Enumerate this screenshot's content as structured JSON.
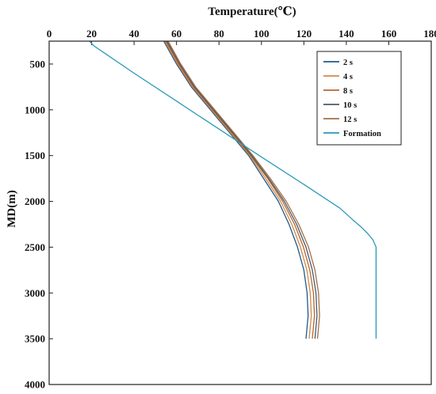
{
  "chart_data": {
    "type": "line",
    "xlabel": "Temperature(℃)",
    "ylabel": "MD(m)",
    "xlim": [
      0,
      180
    ],
    "ylim": [
      4000,
      250
    ],
    "y_inverted": true,
    "x_axis_position": "top",
    "x_ticks": [
      0,
      20,
      40,
      60,
      80,
      100,
      120,
      140,
      160,
      180
    ],
    "y_ticks": [
      500,
      1000,
      1500,
      2000,
      2500,
      3000,
      3500,
      4000
    ],
    "legend_position": "top-right",
    "grid": false,
    "series": [
      {
        "name": "2 s",
        "color": "#1f5a8c",
        "points": [
          [
            54,
            250
          ],
          [
            60,
            500
          ],
          [
            67,
            750
          ],
          [
            76,
            1000
          ],
          [
            85,
            1250
          ],
          [
            94,
            1500
          ],
          [
            101,
            1750
          ],
          [
            108,
            2000
          ],
          [
            113,
            2250
          ],
          [
            117,
            2500
          ],
          [
            120,
            2750
          ],
          [
            121.5,
            3000
          ],
          [
            122,
            3250
          ],
          [
            121,
            3500
          ]
        ]
      },
      {
        "name": "4 s",
        "color": "#d08a4a",
        "points": [
          [
            54.5,
            250
          ],
          [
            60.5,
            500
          ],
          [
            67.5,
            750
          ],
          [
            76.5,
            1000
          ],
          [
            85.5,
            1250
          ],
          [
            94.5,
            1500
          ],
          [
            102,
            1750
          ],
          [
            109,
            2000
          ],
          [
            114.3,
            2250
          ],
          [
            118.4,
            2500
          ],
          [
            121.4,
            2750
          ],
          [
            123,
            3000
          ],
          [
            123.5,
            3250
          ],
          [
            122.5,
            3500
          ]
        ]
      },
      {
        "name": "8 s",
        "color": "#b8662e",
        "points": [
          [
            55,
            250
          ],
          [
            61,
            500
          ],
          [
            68,
            750
          ],
          [
            77,
            1000
          ],
          [
            86,
            1250
          ],
          [
            95,
            1500
          ],
          [
            103,
            1750
          ],
          [
            110,
            2000
          ],
          [
            115.6,
            2250
          ],
          [
            119.8,
            2500
          ],
          [
            122.8,
            2750
          ],
          [
            124.5,
            3000
          ],
          [
            125,
            3250
          ],
          [
            124,
            3500
          ]
        ]
      },
      {
        "name": "10 s",
        "color": "#4a5a6a",
        "points": [
          [
            55.5,
            250
          ],
          [
            61.5,
            500
          ],
          [
            68.5,
            750
          ],
          [
            77.5,
            1000
          ],
          [
            86.5,
            1250
          ],
          [
            95.5,
            1500
          ],
          [
            103.5,
            1750
          ],
          [
            110.8,
            2000
          ],
          [
            116.6,
            2250
          ],
          [
            121,
            2500
          ],
          [
            124,
            2750
          ],
          [
            125.7,
            3000
          ],
          [
            126.2,
            3250
          ],
          [
            125.2,
            3500
          ]
        ]
      },
      {
        "name": "12 s",
        "color": "#a0704a",
        "points": [
          [
            56,
            250
          ],
          [
            62,
            500
          ],
          [
            69,
            750
          ],
          [
            78,
            1000
          ],
          [
            87,
            1250
          ],
          [
            96,
            1500
          ],
          [
            104.2,
            1750
          ],
          [
            111.7,
            2000
          ],
          [
            117.6,
            2250
          ],
          [
            122.2,
            2500
          ],
          [
            125.2,
            2750
          ],
          [
            126.9,
            3000
          ],
          [
            127.4,
            3250
          ],
          [
            126.4,
            3500
          ]
        ]
      },
      {
        "name": "Formation",
        "color": "#2a9ab8",
        "points": [
          [
            19,
            250
          ],
          [
            21,
            300
          ],
          [
            40,
            600
          ],
          [
            60,
            905
          ],
          [
            80,
            1210
          ],
          [
            100,
            1515
          ],
          [
            120,
            1815
          ],
          [
            137,
            2075
          ],
          [
            143,
            2200
          ],
          [
            147,
            2280
          ],
          [
            150,
            2350
          ],
          [
            152.5,
            2420
          ],
          [
            154,
            2500
          ],
          [
            154,
            2600
          ],
          [
            154,
            3000
          ],
          [
            154,
            3500
          ]
        ]
      }
    ]
  }
}
